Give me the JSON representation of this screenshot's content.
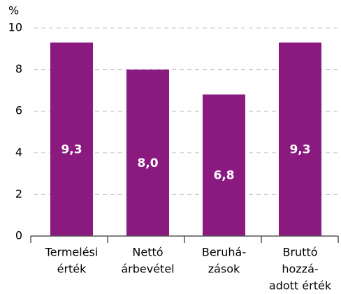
{
  "chart_data": {
    "type": "bar",
    "y_axis_label": "%",
    "categories": [
      [
        "Termelési",
        "érték"
      ],
      [
        "Nettó",
        "árbevétel"
      ],
      [
        "Beruhá-",
        "zások"
      ],
      [
        "Bruttó",
        "hozzá-",
        "adott érték"
      ]
    ],
    "values": [
      9.3,
      8.0,
      6.8,
      9.3
    ],
    "value_labels": [
      "9,3",
      "8,0",
      "6,8",
      "9,3"
    ],
    "color": "#8b1a80",
    "ylim": [
      0,
      10
    ],
    "yticks": [
      0,
      2,
      4,
      6,
      8,
      10
    ],
    "grid": true
  }
}
